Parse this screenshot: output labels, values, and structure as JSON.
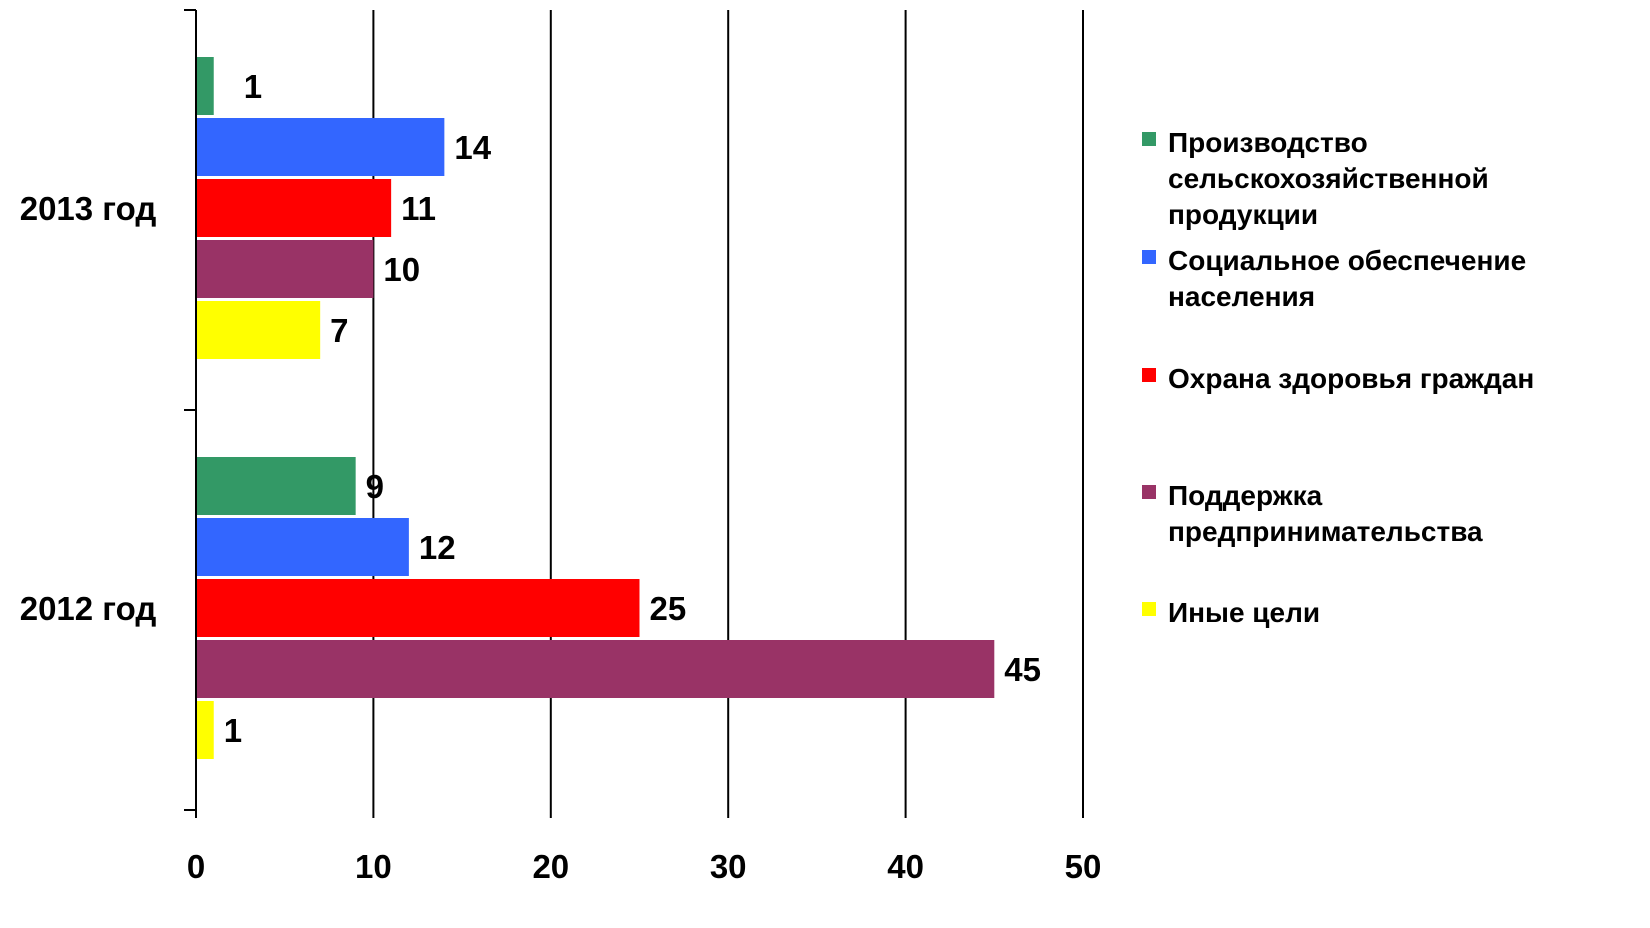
{
  "chart_data": {
    "type": "bar",
    "orientation": "horizontal",
    "title": "",
    "xlabel": "",
    "ylabel": "",
    "xlim": [
      0,
      50
    ],
    "xticks": [
      0,
      10,
      20,
      30,
      40,
      50
    ],
    "grid": true,
    "legend_position": "right",
    "categories": [
      "2013 год",
      "2012 год"
    ],
    "series": [
      {
        "name": "Производство сельскохозяйственной продукции",
        "legend_lines": [
          "Производство",
          "сельскохозяйственной",
          "продукции"
        ],
        "color": "#339966",
        "values": [
          1,
          9
        ]
      },
      {
        "name": "Социальное обеспечение населения",
        "legend_lines": [
          "Социальное обеспечение",
          "населения"
        ],
        "color": "#3366FF",
        "values": [
          14,
          12
        ]
      },
      {
        "name": "Охрана здоровья граждан",
        "legend_lines": [
          "Охрана здоровья граждан"
        ],
        "color": "#FF0000",
        "values": [
          11,
          25
        ]
      },
      {
        "name": "Поддержка предпринимательства",
        "legend_lines": [
          "Поддержка",
          "предпринимательства"
        ],
        "color": "#993366",
        "values": [
          10,
          45
        ]
      },
      {
        "name": "Иные цели",
        "legend_lines": [
          "Иные цели"
        ],
        "color": "#FFFF00",
        "values": [
          7,
          1
        ]
      }
    ]
  }
}
